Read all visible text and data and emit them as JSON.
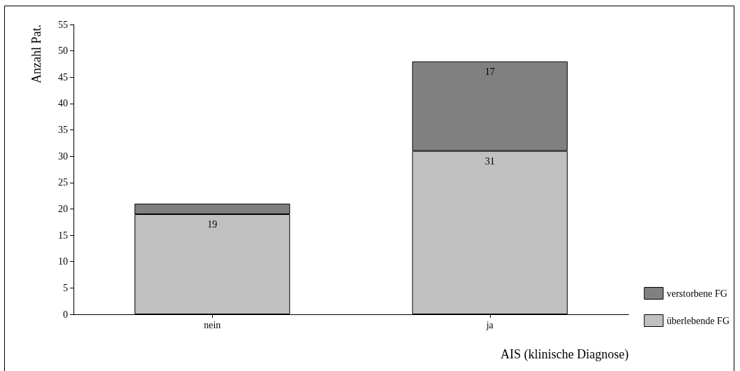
{
  "chart_data": {
    "type": "bar",
    "stacked": true,
    "xlabel": "AIS (klinische Diagnose)",
    "ylabel": "Anzahl Pat.",
    "categories": [
      "nein",
      "ja"
    ],
    "series": [
      {
        "name": "überlebende FG",
        "color": "#c0c0c0",
        "values": [
          19,
          31
        ],
        "value_labels": [
          "19",
          "31"
        ]
      },
      {
        "name": "verstorbene FG",
        "color": "#808080",
        "values": [
          2,
          17
        ],
        "value_labels": [
          null,
          "17"
        ]
      }
    ],
    "ylim": [
      0,
      55
    ],
    "yticks": [
      0,
      5,
      10,
      15,
      20,
      25,
      30,
      35,
      40,
      45,
      50,
      55
    ],
    "grid": false,
    "legend": "bottom right"
  }
}
